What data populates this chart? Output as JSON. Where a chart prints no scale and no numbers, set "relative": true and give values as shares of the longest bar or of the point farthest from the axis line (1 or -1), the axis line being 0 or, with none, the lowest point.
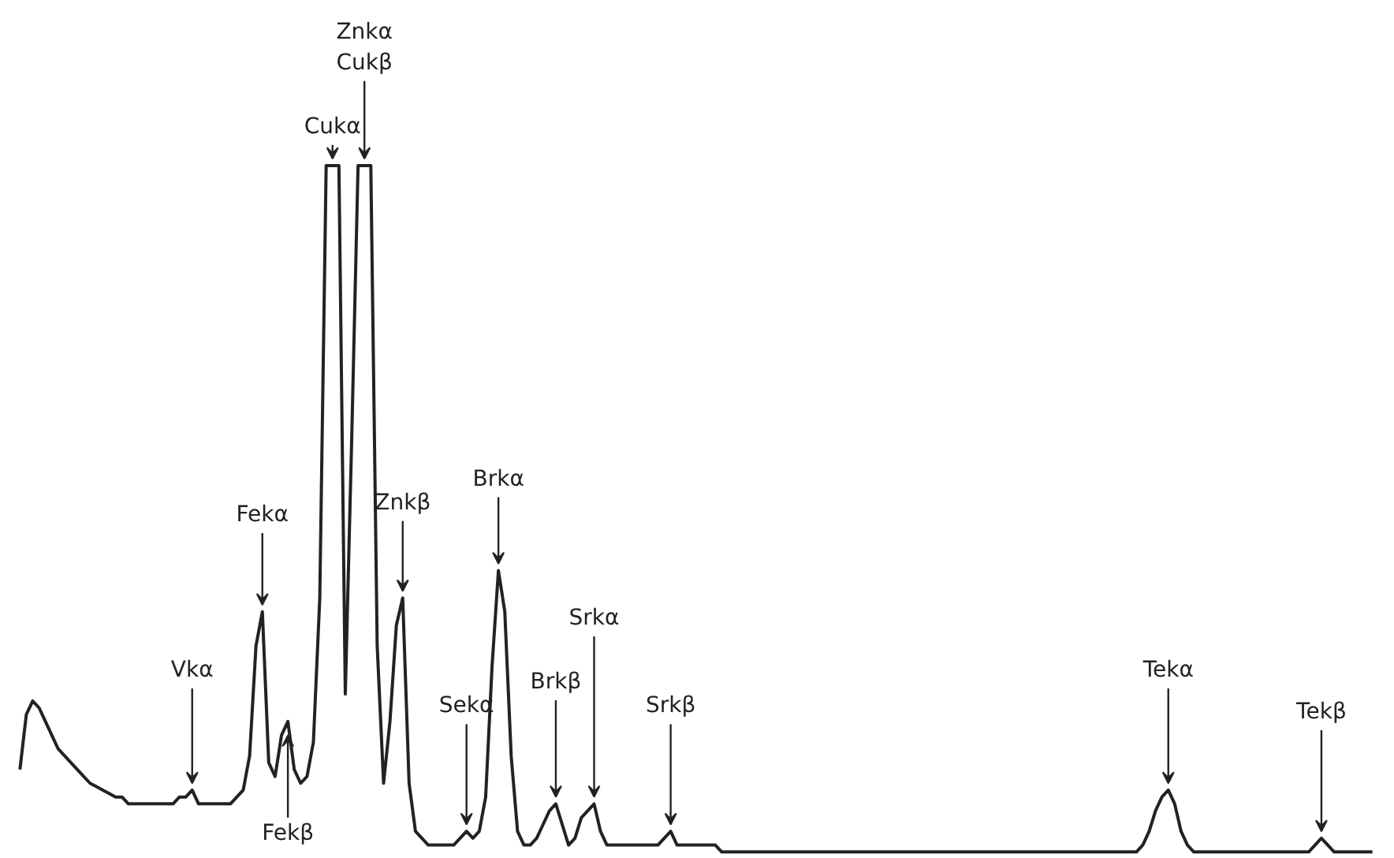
{
  "chart_data": {
    "type": "line",
    "relative": true,
    "categories": [
      null,
      null,
      null,
      null,
      null,
      null,
      null,
      null,
      null,
      null,
      null,
      null,
      null,
      null,
      null,
      null,
      null,
      null,
      null,
      null,
      null,
      null,
      null,
      null,
      null,
      null,
      null,
      null,
      null,
      null,
      null,
      null,
      null,
      null,
      null,
      null,
      null,
      null,
      null,
      null,
      null,
      null,
      null,
      null,
      null,
      null,
      null,
      null,
      null,
      null,
      null,
      null,
      null,
      null,
      null,
      null,
      null,
      null,
      null,
      null,
      null,
      null,
      null,
      null,
      null,
      null,
      null,
      null,
      null,
      null,
      null,
      null,
      null,
      null,
      null,
      null,
      null,
      null,
      null,
      null,
      null,
      null,
      null,
      null,
      null,
      null,
      null,
      null,
      null,
      null,
      null,
      null,
      null,
      null,
      null,
      null,
      null,
      null,
      null,
      null,
      null,
      null,
      null,
      null,
      null,
      null,
      null,
      null,
      null,
      null,
      null,
      null,
      null,
      null,
      null,
      null,
      null,
      null,
      null,
      null,
      null,
      null,
      null,
      null,
      null,
      null,
      null,
      null,
      null,
      null,
      null,
      null,
      null,
      null,
      null,
      null,
      null,
      null,
      null,
      null,
      null,
      null,
      null,
      null,
      null,
      null,
      null,
      null,
      null,
      null,
      null,
      null,
      null,
      null,
      null,
      null,
      null,
      null,
      null,
      null,
      null,
      null,
      null,
      null,
      null,
      null,
      null,
      null,
      null,
      null,
      null,
      null,
      null,
      null,
      null,
      null,
      null,
      null,
      null,
      null,
      null,
      null,
      null,
      null,
      null,
      null,
      null,
      null,
      null,
      null,
      null,
      null,
      null,
      null,
      null,
      null,
      null,
      null,
      null,
      null,
      null,
      null,
      null,
      null,
      null,
      null,
      null,
      null,
      null,
      null,
      null,
      null,
      null
    ],
    "series": [
      {
        "color": "#222222",
        "values": [
          0.12,
          0.2,
          0.22,
          0.21,
          0.19,
          0.17,
          0.15,
          0.14,
          0.13,
          0.12,
          0.11,
          0.1,
          0.095,
          0.09,
          0.085,
          0.08,
          0.08,
          0.07,
          0.07,
          0.07,
          0.07,
          0.07,
          0.07,
          0.07,
          0.07,
          0.08,
          0.08,
          0.09,
          0.07,
          0.07,
          0.07,
          0.07,
          0.07,
          0.07,
          0.08,
          0.09,
          0.14,
          0.3,
          0.35,
          0.13,
          0.11,
          0.17,
          0.19,
          0.12,
          0.1,
          0.11,
          0.16,
          0.37,
          1,
          1,
          1,
          0.23,
          0.6,
          1,
          1,
          1,
          0.3,
          0.1,
          0.19,
          0.33,
          0.37,
          0.1,
          0.03,
          0.02,
          0.01,
          0.01,
          0.01,
          0.01,
          0.01,
          0.02,
          0.03,
          0.02,
          0.03,
          0.08,
          0.27,
          0.41,
          0.35,
          0.14,
          0.03,
          0.01,
          0.01,
          0.02,
          0.04,
          0.06,
          0.07,
          0.04,
          0.01,
          0.02,
          0.05,
          0.06,
          0.07,
          0.03,
          0.01,
          0.01,
          0.01,
          0.01,
          0.01,
          0.01,
          0.01,
          0.01,
          0.01,
          0.02,
          0.03,
          0.01,
          0.01,
          0.01,
          0.01,
          0.01,
          0.01,
          0.01,
          0,
          0,
          0,
          0,
          0,
          0,
          0,
          0,
          0,
          0,
          0,
          0,
          0,
          0,
          0,
          0,
          0,
          0,
          0,
          0,
          0,
          0,
          0,
          0,
          0,
          0,
          0,
          0,
          0,
          0,
          0,
          0,
          0,
          0,
          0,
          0,
          0,
          0,
          0,
          0,
          0,
          0,
          0,
          0,
          0,
          0,
          0,
          0,
          0,
          0,
          0,
          0,
          0,
          0,
          0,
          0,
          0,
          0,
          0,
          0,
          0,
          0,
          0,
          0,
          0,
          0,
          0.01,
          0.03,
          0.06,
          0.08,
          0.09,
          0.07,
          0.03,
          0.01,
          0,
          0,
          0,
          0,
          0,
          0,
          0,
          0,
          0,
          0,
          0,
          0,
          0,
          0,
          0,
          0,
          0,
          0,
          0,
          0.01,
          0.02,
          0.01,
          0,
          0,
          0,
          0,
          0,
          0,
          0
        ]
      }
    ],
    "annotations": [
      {
        "text": "Vkα",
        "y": 0.09
      },
      {
        "text": "Fekα",
        "y": 0.35
      },
      {
        "text": "Fekβ",
        "y": 0.19
      },
      {
        "text": "Cukα",
        "y": 1
      },
      {
        "text": "Znkα\nCukβ",
        "y": 1
      },
      {
        "text": "Znkβ",
        "y": 0.37
      },
      {
        "text": "Sekα",
        "y": 0.03
      },
      {
        "text": "Brkα",
        "y": 0.41
      },
      {
        "text": "Brkβ",
        "y": 0.07
      },
      {
        "text": "Srkα",
        "y": 0.07
      },
      {
        "text": "Srkβ",
        "y": 0.03
      },
      {
        "text": "Tekα",
        "y": 0.09
      },
      {
        "text": "Tekβ",
        "y": 0.02
      }
    ]
  }
}
